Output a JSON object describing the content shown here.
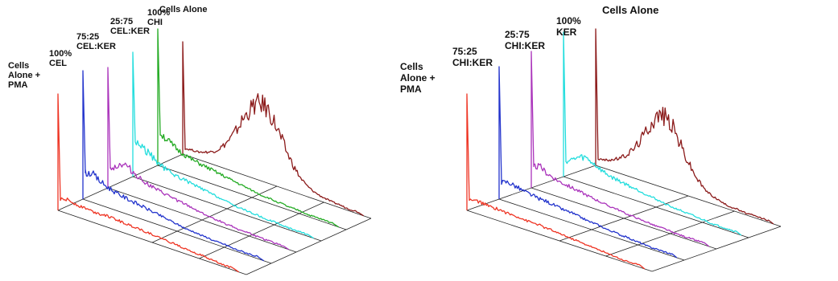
{
  "chart_data": [
    {
      "type": "line",
      "title": "",
      "xlabel": "",
      "ylabel": "",
      "grid": true,
      "series": [
        {
          "name": "Cells Alone",
          "color": "#8b1a1a",
          "peak_position": 0.45,
          "values": [
            5,
            6,
            6,
            8,
            10,
            14,
            20,
            28,
            38,
            50,
            60,
            68,
            70,
            66,
            56,
            44,
            32,
            22,
            14,
            9,
            6,
            4,
            3,
            2,
            2,
            1,
            1,
            1
          ]
        },
        {
          "name": "100%\nCHI",
          "color": "#22aa22",
          "values": [
            30,
            26,
            22,
            19,
            17,
            15,
            14,
            13,
            12,
            11,
            10,
            9,
            8,
            7,
            6,
            5,
            4,
            4,
            3,
            3,
            2,
            2,
            2,
            1,
            1,
            1,
            1,
            1
          ]
        },
        {
          "name": "25:75\nCEL:KER",
          "color": "#22dddd",
          "values": [
            32,
            30,
            26,
            22,
            18,
            16,
            14,
            13,
            12,
            11,
            10,
            9,
            8,
            7,
            6,
            5,
            4,
            4,
            3,
            3,
            2,
            2,
            2,
            1,
            1,
            1,
            1,
            1
          ]
        },
        {
          "name": "75:25\nCEL:KER",
          "color": "#aa33bb",
          "values": [
            18,
            22,
            26,
            24,
            20,
            17,
            15,
            13,
            12,
            11,
            10,
            9,
            8,
            7,
            6,
            5,
            4,
            4,
            3,
            3,
            2,
            2,
            2,
            1,
            1,
            1,
            1,
            1
          ]
        },
        {
          "name": "100%\nCEL",
          "color": "#2233cc",
          "values": [
            24,
            26,
            22,
            19,
            17,
            15,
            14,
            13,
            12,
            11,
            10,
            9,
            8,
            7,
            6,
            5,
            4,
            4,
            3,
            3,
            2,
            2,
            2,
            1,
            1,
            1,
            1,
            1
          ]
        },
        {
          "name": "Cells\nAlone +\nPMA",
          "color": "#ee3322",
          "values": [
            10,
            12,
            11,
            10,
            10,
            9,
            9,
            10,
            9,
            9,
            8,
            8,
            8,
            7,
            7,
            6,
            6,
            5,
            5,
            4,
            4,
            3,
            3,
            2,
            2,
            1,
            1,
            1
          ]
        }
      ]
    },
    {
      "type": "line",
      "title": "",
      "xlabel": "",
      "ylabel": "",
      "grid": true,
      "series": [
        {
          "name": "Cells Alone",
          "color": "#8b1a1a",
          "values": [
            6,
            7,
            9,
            12,
            16,
            22,
            30,
            40,
            52,
            62,
            68,
            66,
            58,
            46,
            34,
            24,
            16,
            10,
            7,
            5,
            3,
            2,
            2,
            1,
            1,
            1,
            1,
            1
          ]
        },
        {
          "name": "100%\nKER",
          "color": "#22dddd",
          "values": [
            14,
            18,
            22,
            24,
            22,
            19,
            16,
            14,
            13,
            12,
            11,
            10,
            9,
            8,
            7,
            6,
            5,
            4,
            4,
            3,
            3,
            2,
            2,
            1,
            1,
            1,
            1,
            1
          ]
        },
        {
          "name": "25:75\nCHI:KER",
          "color": "#aa33bb",
          "values": [
            20,
            22,
            18,
            16,
            14,
            13,
            12,
            11,
            10,
            9,
            8,
            7,
            6,
            6,
            5,
            4,
            4,
            3,
            3,
            2,
            2,
            2,
            1,
            1,
            1,
            1,
            1,
            1
          ]
        },
        {
          "name": "75:25\nCHI:KER",
          "color": "#2233cc",
          "values": [
            16,
            18,
            17,
            15,
            14,
            13,
            12,
            12,
            11,
            10,
            9,
            9,
            8,
            7,
            6,
            6,
            5,
            4,
            4,
            3,
            3,
            2,
            2,
            1,
            1,
            1,
            1,
            1
          ]
        },
        {
          "name": "Cells\nAlone +\nPMA",
          "color": "#ee3322",
          "values": [
            10,
            11,
            11,
            10,
            10,
            10,
            9,
            9,
            9,
            8,
            8,
            8,
            7,
            7,
            6,
            6,
            5,
            5,
            4,
            4,
            3,
            3,
            2,
            2,
            1,
            1,
            1,
            1
          ]
        }
      ]
    }
  ]
}
